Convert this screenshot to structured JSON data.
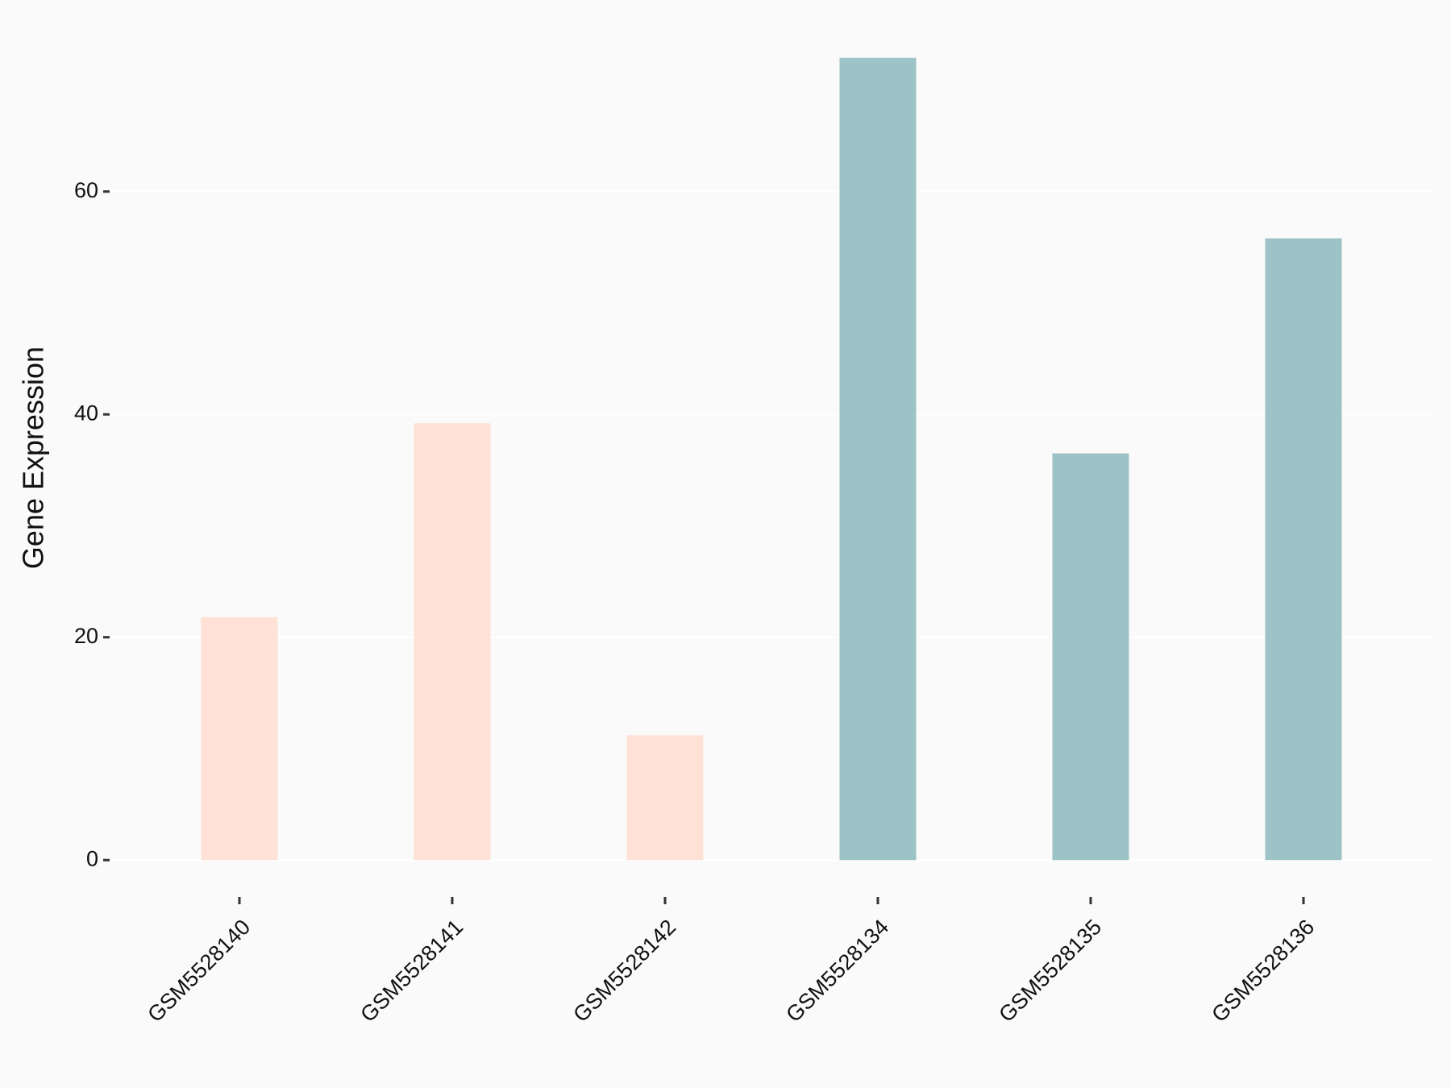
{
  "chart_data": {
    "type": "bar",
    "y_label": "Gene Expression",
    "categories": [
      "GSM5528140",
      "GSM5528141",
      "GSM5528142",
      "GSM5528134",
      "GSM5528135",
      "GSM5528136"
    ],
    "values": [
      21.8,
      39.2,
      11.2,
      72.0,
      36.5,
      55.8
    ],
    "colors": [
      "#ffe1d6",
      "#ffe1d6",
      "#ffe1d6",
      "#9dc3c6",
      "#9dc3c6",
      "#9dc3c6"
    ],
    "ylim": [
      -3.6,
      75.6
    ],
    "yticks": [
      0,
      20,
      40,
      60
    ],
    "grid": true
  }
}
